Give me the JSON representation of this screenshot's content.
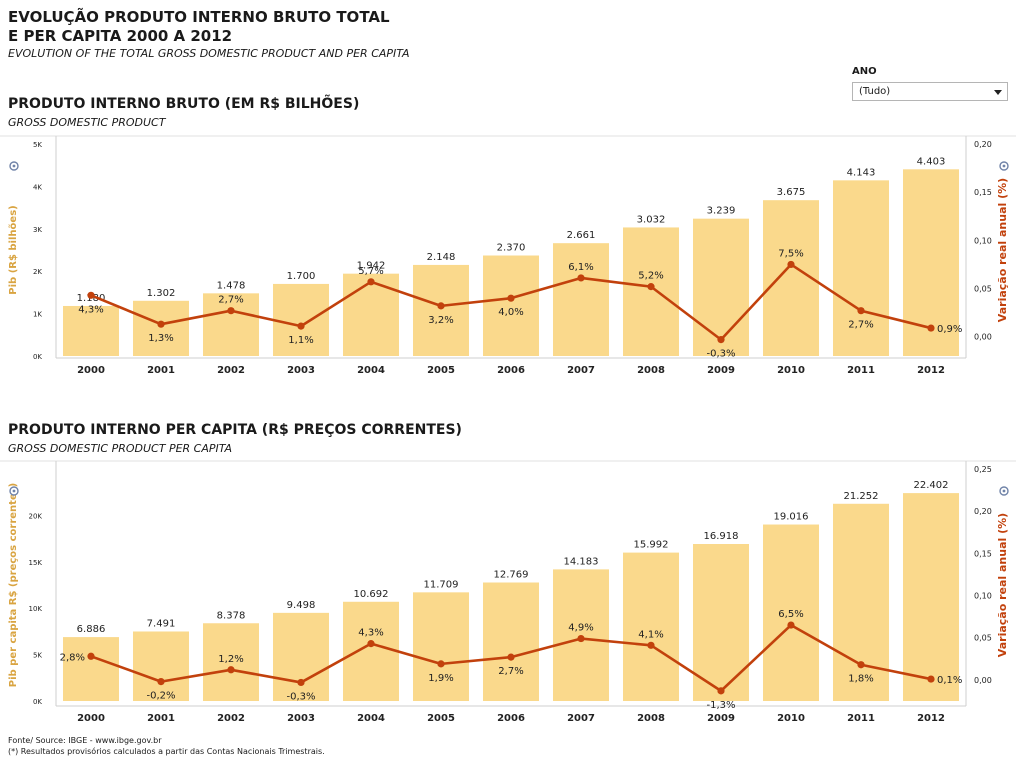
{
  "header": {
    "title": "EVOLUÇÃO PRODUTO INTERNO BRUTO TOTAL\nE PER CAPITA 2000 A 2012",
    "subtitle": "EVOLUTION OF THE TOTAL GROSS DOMESTIC PRODUCT AND PER CAPITA"
  },
  "filter": {
    "label": "ANO",
    "value": "(Tudo)"
  },
  "footer": {
    "source": "Fonte/ Source: IBGE  - www.ibge.gov.br",
    "note": "(*) Resultados provisórios calculados a partir das Contas Nacionais Trimestrais."
  },
  "colors": {
    "bar": "#fad98c",
    "line": "#c2410c",
    "ylabel_left": "#d9a441",
    "ylabel_right": "#c2410c"
  },
  "chart_data": [
    {
      "type": "bar",
      "title": "PRODUTO INTERNO BRUTO (EM R$ BILHÕES)",
      "subtitle": "GROSS DOMESTIC PRODUCT",
      "categories": [
        "2000",
        "2001",
        "2002",
        "2003",
        "2004",
        "2005",
        "2006",
        "2007",
        "2008",
        "2009",
        "2010",
        "2011",
        "2012"
      ],
      "values": [
        1180,
        1302,
        1478,
        1700,
        1942,
        2148,
        2370,
        2661,
        3032,
        3239,
        3675,
        4143,
        4403
      ],
      "value_labels": [
        "1.180",
        "1.302",
        "1.478",
        "1.700",
        "1.942",
        "2.148",
        "2.370",
        "2.661",
        "3.032",
        "3.239",
        "3.675",
        "4.143",
        "4.403"
      ],
      "ylabel": "Pib (R$ bilhões)",
      "ylim": [
        0,
        5000
      ],
      "yticks": [
        0,
        1000,
        2000,
        3000,
        4000,
        5000
      ],
      "yticklabels": [
        "0K",
        "1K",
        "2K",
        "3K",
        "4K",
        "5K"
      ],
      "line": {
        "values": [
          0.043,
          0.013,
          0.027,
          0.011,
          0.057,
          0.032,
          0.04,
          0.061,
          0.052,
          -0.003,
          0.075,
          0.027,
          0.009
        ],
        "value_labels": [
          "4,3%",
          "1,3%",
          "2,7%",
          "1,1%",
          "5,7%",
          "3,2%",
          "4,0%",
          "6,1%",
          "5,2%",
          "-0,3%",
          "7,5%",
          "2,7%",
          "0,9%"
        ],
        "label_pos": [
          "below",
          "below",
          "above",
          "below",
          "above",
          "below",
          "below",
          "above",
          "above",
          "below",
          "above",
          "below",
          "right"
        ],
        "ylabel": "Variação real anual (%)",
        "ylim": [
          -0.02,
          0.2
        ],
        "yticks": [
          0,
          0.05,
          0.1,
          0.15,
          0.2
        ],
        "yticklabels": [
          "0,00",
          "0,05",
          "0,10",
          "0,15",
          "0,20"
        ]
      },
      "grid": false
    },
    {
      "type": "bar",
      "title": "PRODUTO INTERNO PER CAPITA (R$ PREÇOS CORRENTES)",
      "subtitle": "GROSS DOMESTIC PRODUCT PER CAPITA",
      "categories": [
        "2000",
        "2001",
        "2002",
        "2003",
        "2004",
        "2005",
        "2006",
        "2007",
        "2008",
        "2009",
        "2010",
        "2011",
        "2012"
      ],
      "values": [
        6886,
        7491,
        8378,
        9498,
        10692,
        11709,
        12769,
        14183,
        15992,
        16918,
        19016,
        21252,
        22402
      ],
      "value_labels": [
        "6.886",
        "7.491",
        "8.378",
        "9.498",
        "10.692",
        "11.709",
        "12.769",
        "14.183",
        "15.992",
        "16.918",
        "19.016",
        "21.252",
        "22.402"
      ],
      "ylabel": "Pib per capita R$ (preços correntes)",
      "ylim": [
        0,
        25000
      ],
      "yticks": [
        0,
        5000,
        10000,
        15000,
        20000
      ],
      "yticklabels": [
        "0K",
        "5K",
        "10K",
        "15K",
        "20K"
      ],
      "line": {
        "values": [
          0.028,
          -0.002,
          0.012,
          -0.003,
          0.043,
          0.019,
          0.027,
          0.049,
          0.041,
          -0.013,
          0.065,
          0.018,
          0.001
        ],
        "value_labels": [
          "2,8%",
          "-0,2%",
          "1,2%",
          "-0,3%",
          "4,3%",
          "1,9%",
          "2,7%",
          "4,9%",
          "4,1%",
          "-1,3%",
          "6,5%",
          "1,8%",
          "0,1%"
        ],
        "label_pos": [
          "left",
          "below",
          "above",
          "below",
          "above",
          "below",
          "below",
          "above",
          "above",
          "below",
          "above",
          "below",
          "right"
        ],
        "ylabel": "Variação real anual (%)",
        "ylim": [
          -0.025,
          0.25
        ],
        "yticks": [
          0,
          0.05,
          0.1,
          0.15,
          0.2,
          0.25
        ],
        "yticklabels": [
          "0,00",
          "0,05",
          "0,10",
          "0,15",
          "0,20",
          "0,25"
        ]
      },
      "grid": false
    }
  ]
}
